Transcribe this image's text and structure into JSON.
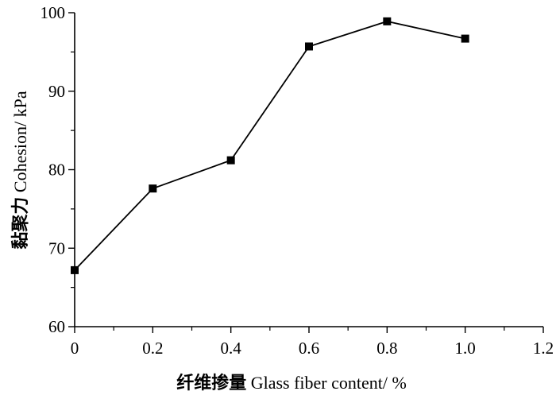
{
  "chart_data": {
    "type": "line",
    "title": "",
    "xlabel": {
      "cjk": "纤维掺量",
      "en": " Glass fiber content/ %"
    },
    "ylabel": {
      "cjk": "黏聚力",
      "en": " Cohesion/ kPa"
    },
    "xlim": [
      0,
      1.2
    ],
    "ylim": [
      60,
      100
    ],
    "x_ticks": [
      0,
      0.2,
      0.4,
      0.6,
      0.8,
      1.0,
      1.2
    ],
    "x_tick_labels": [
      "0",
      "0.2",
      "0.4",
      "0.6",
      "0.8",
      "1.0",
      "1.2"
    ],
    "y_ticks": [
      60,
      70,
      80,
      90,
      100
    ],
    "y_tick_labels": [
      "60",
      "70",
      "80",
      "90",
      "100"
    ],
    "grid": false,
    "legend": false,
    "marker": "square",
    "line_color": "#000000",
    "series": [
      {
        "x": [
          0,
          0.2,
          0.4,
          0.6,
          0.8,
          1.0
        ],
        "y": [
          67.2,
          77.6,
          81.2,
          95.7,
          98.9,
          96.7
        ]
      }
    ]
  }
}
